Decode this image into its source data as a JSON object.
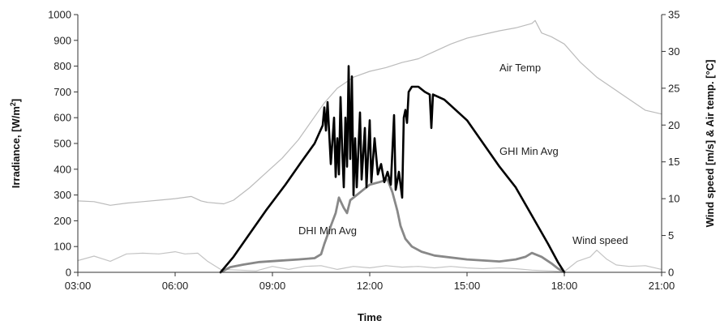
{
  "chart_data": {
    "type": "line",
    "xlabel": "Time",
    "ylabel_left": {
      "pre": "Irradiance,  [W/m",
      "sup": "2",
      "post": "]"
    },
    "ylabel_right": "Wind speed [m/s] & Air temp. [°C]",
    "xlim_hours": [
      3,
      21
    ],
    "ylim_left": [
      0,
      1000
    ],
    "ylim_right": [
      0,
      35
    ],
    "x_ticks": [
      {
        "h": 3,
        "label": "03:00"
      },
      {
        "h": 6,
        "label": "06:00"
      },
      {
        "h": 9,
        "label": "09:00"
      },
      {
        "h": 12,
        "label": "12:00"
      },
      {
        "h": 15,
        "label": "15:00"
      },
      {
        "h": 18,
        "label": "18:00"
      },
      {
        "h": 21,
        "label": "21:00"
      }
    ],
    "y_ticks_left": [
      0,
      100,
      200,
      300,
      400,
      500,
      600,
      700,
      800,
      900,
      1000
    ],
    "y_ticks_right": [
      0,
      5,
      10,
      15,
      20,
      25,
      30,
      35
    ],
    "annotations": [
      {
        "text": "Air Temp",
        "series": "air_temp"
      },
      {
        "text": "GHI Min Avg",
        "series": "ghi"
      },
      {
        "text": "DHI Min Avg",
        "series": "dhi"
      },
      {
        "text": "Wind speed",
        "series": "wind"
      }
    ],
    "colors": {
      "ghi": "#000000",
      "dhi": "#888888",
      "air_temp": "#bbbbbb",
      "wind": "#c4c4c4"
    },
    "series": [
      {
        "id": "ghi",
        "axis": "left",
        "points": [
          [
            7.4,
            0
          ],
          [
            7.8,
            60
          ],
          [
            8.3,
            150
          ],
          [
            8.8,
            240
          ],
          [
            9.4,
            340
          ],
          [
            9.9,
            430
          ],
          [
            10.3,
            500
          ],
          [
            10.55,
            570
          ],
          [
            10.6,
            640
          ],
          [
            10.65,
            550
          ],
          [
            10.7,
            660
          ],
          [
            10.8,
            420
          ],
          [
            10.9,
            600
          ],
          [
            10.95,
            370
          ],
          [
            11.0,
            520
          ],
          [
            11.05,
            380
          ],
          [
            11.1,
            680
          ],
          [
            11.15,
            480
          ],
          [
            11.2,
            330
          ],
          [
            11.25,
            600
          ],
          [
            11.3,
            410
          ],
          [
            11.35,
            800
          ],
          [
            11.4,
            440
          ],
          [
            11.45,
            760
          ],
          [
            11.5,
            300
          ],
          [
            11.55,
            520
          ],
          [
            11.6,
            330
          ],
          [
            11.7,
            620
          ],
          [
            11.75,
            360
          ],
          [
            11.85,
            560
          ],
          [
            11.9,
            330
          ],
          [
            12.0,
            590
          ],
          [
            12.05,
            350
          ],
          [
            12.15,
            520
          ],
          [
            12.25,
            380
          ],
          [
            12.35,
            420
          ],
          [
            12.45,
            350
          ],
          [
            12.55,
            390
          ],
          [
            12.65,
            340
          ],
          [
            12.75,
            610
          ],
          [
            12.8,
            320
          ],
          [
            12.9,
            390
          ],
          [
            13.0,
            290
          ],
          [
            13.05,
            600
          ],
          [
            13.1,
            630
          ],
          [
            13.15,
            580
          ],
          [
            13.2,
            700
          ],
          [
            13.3,
            720
          ],
          [
            13.5,
            720
          ],
          [
            13.7,
            700
          ],
          [
            13.85,
            690
          ],
          [
            13.9,
            560
          ],
          [
            13.95,
            690
          ],
          [
            14.3,
            670
          ],
          [
            15.0,
            590
          ],
          [
            16.0,
            410
          ],
          [
            16.5,
            330
          ],
          [
            17.0,
            220
          ],
          [
            17.5,
            110
          ],
          [
            17.8,
            40
          ],
          [
            18.0,
            0
          ]
        ]
      },
      {
        "id": "dhi",
        "axis": "left",
        "points": [
          [
            7.4,
            0
          ],
          [
            7.7,
            20
          ],
          [
            8.1,
            30
          ],
          [
            8.6,
            40
          ],
          [
            9.2,
            45
          ],
          [
            9.8,
            50
          ],
          [
            10.3,
            55
          ],
          [
            10.5,
            70
          ],
          [
            10.6,
            110
          ],
          [
            10.8,
            180
          ],
          [
            10.95,
            230
          ],
          [
            11.05,
            290
          ],
          [
            11.2,
            250
          ],
          [
            11.3,
            230
          ],
          [
            11.4,
            280
          ],
          [
            11.6,
            300
          ],
          [
            11.8,
            320
          ],
          [
            12.0,
            340
          ],
          [
            12.3,
            350
          ],
          [
            12.55,
            360
          ],
          [
            12.7,
            310
          ],
          [
            12.85,
            240
          ],
          [
            12.95,
            180
          ],
          [
            13.1,
            130
          ],
          [
            13.3,
            100
          ],
          [
            13.6,
            80
          ],
          [
            14.0,
            65
          ],
          [
            15.0,
            50
          ],
          [
            16.0,
            42
          ],
          [
            16.5,
            50
          ],
          [
            16.8,
            60
          ],
          [
            17.0,
            75
          ],
          [
            17.3,
            60
          ],
          [
            17.6,
            35
          ],
          [
            17.8,
            15
          ],
          [
            18.0,
            0
          ]
        ]
      },
      {
        "id": "air_temp",
        "axis": "right",
        "points": [
          [
            3.0,
            9.7
          ],
          [
            3.5,
            9.6
          ],
          [
            4.0,
            9.1
          ],
          [
            4.5,
            9.4
          ],
          [
            5.0,
            9.6
          ],
          [
            5.5,
            9.8
          ],
          [
            6.0,
            10.0
          ],
          [
            6.5,
            10.3
          ],
          [
            6.8,
            9.7
          ],
          [
            7.0,
            9.5
          ],
          [
            7.5,
            9.3
          ],
          [
            7.8,
            9.8
          ],
          [
            8.3,
            11.5
          ],
          [
            8.8,
            13.5
          ],
          [
            9.3,
            15.5
          ],
          [
            9.8,
            18.0
          ],
          [
            10.2,
            20.5
          ],
          [
            10.6,
            23.0
          ],
          [
            11.0,
            25.0
          ],
          [
            11.5,
            26.5
          ],
          [
            12.0,
            27.3
          ],
          [
            12.5,
            27.8
          ],
          [
            13.0,
            28.5
          ],
          [
            13.5,
            29.0
          ],
          [
            14.0,
            30.0
          ],
          [
            14.5,
            31.0
          ],
          [
            15.0,
            31.8
          ],
          [
            15.5,
            32.3
          ],
          [
            16.0,
            32.8
          ],
          [
            16.5,
            33.2
          ],
          [
            17.0,
            33.8
          ],
          [
            17.1,
            34.2
          ],
          [
            17.3,
            32.5
          ],
          [
            17.6,
            32.0
          ],
          [
            18.0,
            31.0
          ],
          [
            18.5,
            28.5
          ],
          [
            19.0,
            26.5
          ],
          [
            19.5,
            25.0
          ],
          [
            20.0,
            23.5
          ],
          [
            20.5,
            22.0
          ],
          [
            21.0,
            21.5
          ]
        ]
      },
      {
        "id": "wind",
        "axis": "right",
        "points": [
          [
            3.0,
            1.6
          ],
          [
            3.5,
            2.2
          ],
          [
            4.0,
            1.5
          ],
          [
            4.5,
            2.5
          ],
          [
            5.0,
            2.6
          ],
          [
            5.5,
            2.5
          ],
          [
            6.0,
            2.8
          ],
          [
            6.3,
            2.5
          ],
          [
            6.7,
            2.6
          ],
          [
            7.0,
            1.5
          ],
          [
            7.4,
            0.4
          ],
          [
            8.0,
            0.3
          ],
          [
            8.5,
            0.2
          ],
          [
            9.0,
            0.8
          ],
          [
            9.5,
            0.4
          ],
          [
            10.0,
            0.8
          ],
          [
            10.5,
            0.9
          ],
          [
            11.0,
            0.4
          ],
          [
            11.5,
            0.8
          ],
          [
            12.0,
            0.6
          ],
          [
            12.5,
            0.9
          ],
          [
            13.0,
            0.7
          ],
          [
            13.5,
            0.8
          ],
          [
            14.0,
            0.6
          ],
          [
            14.5,
            0.8
          ],
          [
            15.0,
            0.6
          ],
          [
            15.5,
            0.5
          ],
          [
            16.0,
            0.6
          ],
          [
            16.5,
            0.5
          ],
          [
            17.0,
            0.3
          ],
          [
            17.5,
            0.2
          ],
          [
            18.0,
            0.1
          ],
          [
            18.4,
            1.5
          ],
          [
            18.8,
            2.1
          ],
          [
            19.0,
            3.0
          ],
          [
            19.3,
            1.8
          ],
          [
            19.6,
            1.0
          ],
          [
            20.0,
            0.8
          ],
          [
            20.5,
            0.9
          ],
          [
            21.0,
            0.4
          ]
        ]
      }
    ]
  }
}
